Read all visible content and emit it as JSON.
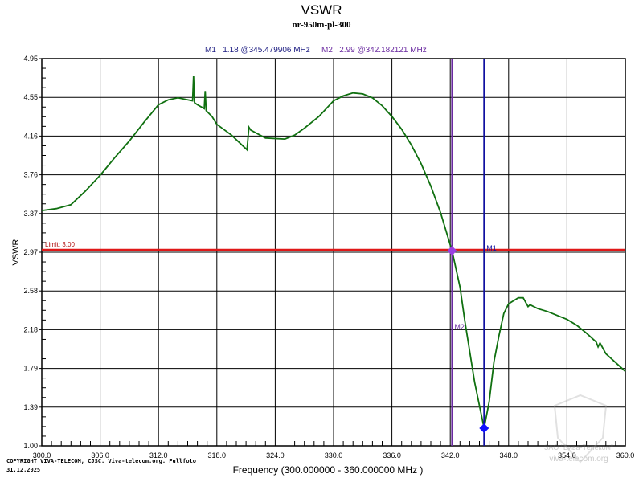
{
  "chart_data": {
    "type": "line",
    "title": "VSWR",
    "subtitle": "nr-950m-pl-300",
    "xlabel": "Frequency (300.000000 - 360.000000 MHz )",
    "ylabel": "VSWR",
    "xlim": [
      300,
      360
    ],
    "ylim": [
      1.0,
      4.95
    ],
    "grid": true,
    "x_ticks": [
      "300.0",
      "306.0",
      "312.0",
      "318.0",
      "324.0",
      "330.0",
      "336.0",
      "342.0",
      "348.0",
      "354.0",
      "360.0"
    ],
    "y_ticks": [
      "4.95",
      "4.55",
      "4.16",
      "3.76",
      "3.37",
      "2.97",
      "2.58",
      "2.18",
      "1.79",
      "1.39",
      "1.00"
    ],
    "series": [
      {
        "name": "VSWR",
        "color": "#107010",
        "x": [
          300,
          301.5,
          303,
          304.5,
          306,
          307.5,
          309,
          310.5,
          312,
          313,
          314,
          315,
          315.5,
          315.6,
          315.7,
          316,
          316.7,
          316.8,
          316.9,
          317.5,
          318,
          319.5,
          321,
          321.1,
          321.3,
          321.5,
          323,
          325,
          326,
          327,
          328.5,
          330,
          331,
          332,
          333,
          334,
          335,
          336,
          337,
          338,
          339,
          340,
          341,
          342.182,
          343,
          343.5,
          344.5,
          345.479906,
          346,
          346.5,
          347,
          347.5,
          348,
          348.5,
          349,
          349.5,
          350,
          350.2,
          351,
          352,
          353,
          354,
          355,
          356,
          357,
          357.2,
          357.4,
          358,
          359,
          360
        ],
        "y": [
          3.4,
          3.42,
          3.46,
          3.6,
          3.76,
          3.94,
          4.11,
          4.3,
          4.48,
          4.53,
          4.55,
          4.53,
          4.52,
          4.77,
          4.5,
          4.48,
          4.44,
          4.62,
          4.42,
          4.36,
          4.28,
          4.17,
          4.03,
          4.02,
          4.25,
          4.22,
          4.14,
          4.13,
          4.17,
          4.24,
          4.36,
          4.52,
          4.57,
          4.6,
          4.59,
          4.55,
          4.47,
          4.36,
          4.23,
          4.07,
          3.88,
          3.65,
          3.38,
          2.99,
          2.62,
          2.27,
          1.65,
          1.18,
          1.45,
          1.86,
          2.12,
          2.35,
          2.45,
          2.48,
          2.51,
          2.51,
          2.42,
          2.44,
          2.4,
          2.37,
          2.33,
          2.29,
          2.23,
          2.15,
          2.06,
          2.01,
          2.05,
          1.94,
          1.85,
          1.76
        ]
      }
    ],
    "limit_line": {
      "label": "Limit: 3.00",
      "value": 3.0,
      "color": "#e01818"
    },
    "markers": [
      {
        "name": "M1",
        "x": 345.479906,
        "y": 1.18,
        "color": "#1010a0",
        "point_color": "#1010ff",
        "readout": "M1   1.18 @345.479906 MHz"
      },
      {
        "name": "M2",
        "x": 342.182121,
        "y": 2.99,
        "color": "#6a2aa0",
        "point_color": "#9a40e0",
        "readout": "M2   2.99 @342.182121 MHz"
      }
    ]
  },
  "footer": {
    "copyright": "COPYRIGHT VIVA-TELECOM, CJSC. Viva-telecom.org. Fullfoto",
    "date": "31.12.2025"
  },
  "watermark": {
    "company": "ЗАО \"Вива-Телеком\"",
    "site": "viva-telecom.org"
  }
}
